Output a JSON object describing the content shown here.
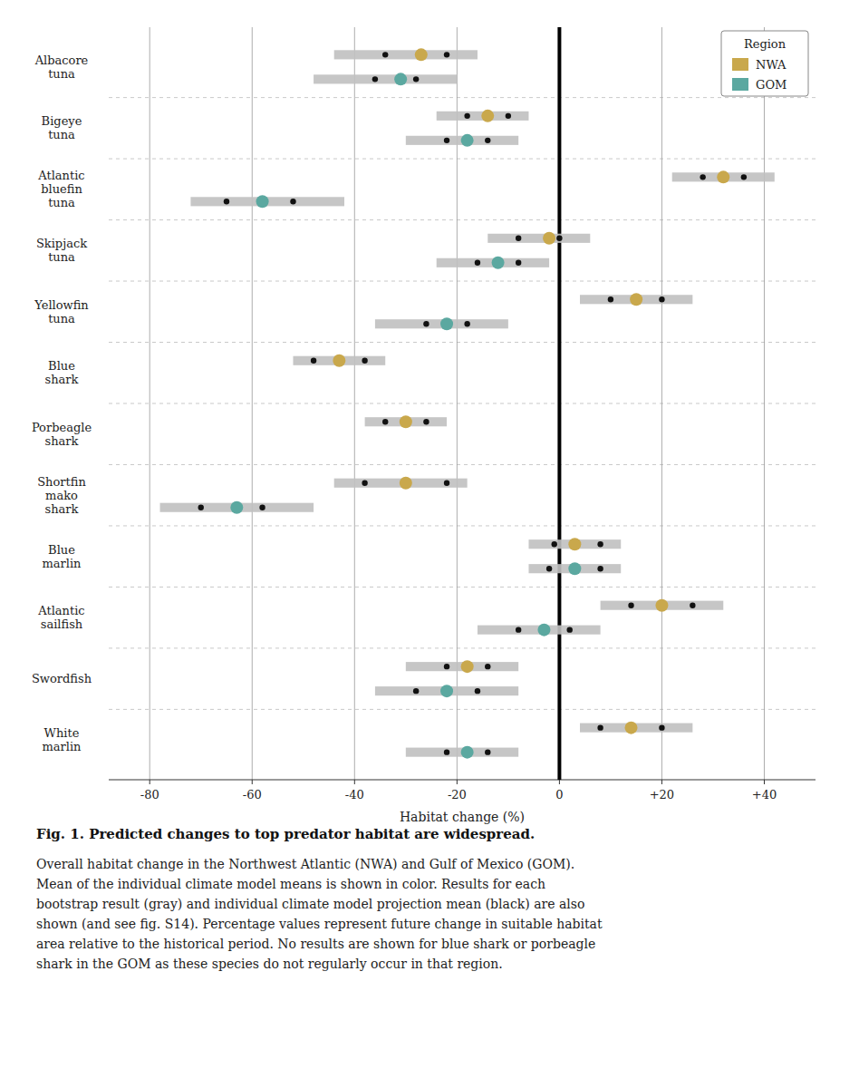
{
  "chart_data": {
    "type": "dot",
    "orientation": "horizontal",
    "title": "Fig. 1. Predicted changes to top predator habitat are widespread.",
    "caption": [
      "Overall habitat change in the Northwest Atlantic (NWA) and Gulf of Mexico (GOM).",
      "Mean of the individual climate model means is shown in color. Results for each",
      "bootstrap result (gray) and individual climate model projection mean (black) are also",
      "shown (and see fig. S14). Percentage values represent future change in suitable habitat",
      "area relative to the historical period. No results are shown for blue shark or porbeagle",
      "shark in the GOM as these species do not regularly occur in that region."
    ],
    "xlabel": "Habitat change (%)",
    "legend_title": "Region",
    "legend": "upper right",
    "grid": true,
    "categories": [
      "Albacore\ntuna",
      "Bigeye\ntuna",
      "Atlantic\nbluefin\ntuna",
      "Skipjack\ntuna",
      "Yellowfin\ntuna",
      "Blue\nshark",
      "Porbeagle\nshark",
      "Shortfin\nmako\nshark",
      "Blue\nmarlin",
      "Atlantic\nsailfish",
      "Swordfish",
      "White\nmarlin"
    ],
    "xlim": [
      -88,
      50
    ],
    "xticks": [
      -80,
      -60,
      -40,
      -20,
      0,
      {
        "value": 20,
        "label": "+20"
      },
      {
        "value": 40,
        "label": "+40"
      }
    ],
    "series": [
      {
        "name": "NWA",
        "color": "#c9a84c",
        "values": [
          -27,
          -14,
          32,
          -2,
          15,
          -43,
          -30,
          -30,
          3,
          20,
          -18,
          14
        ],
        "model_means": [
          [
            -34,
            -22
          ],
          [
            -18,
            -10
          ],
          [
            28,
            36
          ],
          [
            -8,
            0
          ],
          [
            10,
            20
          ],
          [
            -48,
            -38
          ],
          [
            -34,
            -26
          ],
          [
            -38,
            -22
          ],
          [
            -1,
            8
          ],
          [
            14,
            26
          ],
          [
            -22,
            -14
          ],
          [
            8,
            20
          ]
        ],
        "bootstrap_ranges": [
          [
            -44,
            -16
          ],
          [
            -24,
            -6
          ],
          [
            22,
            42
          ],
          [
            -14,
            6
          ],
          [
            4,
            26
          ],
          [
            -52,
            -34
          ],
          [
            -38,
            -22
          ],
          [
            -44,
            -18
          ],
          [
            -6,
            12
          ],
          [
            8,
            32
          ],
          [
            -30,
            -8
          ],
          [
            4,
            26
          ]
        ]
      },
      {
        "name": "GOM",
        "color": "#5ba8a0",
        "values": [
          -31,
          -18,
          -58,
          -12,
          -22,
          null,
          null,
          -63,
          3,
          -3,
          -22,
          -18
        ],
        "model_means": [
          [
            -36,
            -28
          ],
          [
            -22,
            -14
          ],
          [
            -65,
            -52
          ],
          [
            -16,
            -8
          ],
          [
            -26,
            -18
          ],
          null,
          null,
          [
            -70,
            -58
          ],
          [
            -2,
            8
          ],
          [
            -8,
            2
          ],
          [
            -28,
            -16
          ],
          [
            -22,
            -14
          ]
        ],
        "bootstrap_ranges": [
          [
            -48,
            -20
          ],
          [
            -30,
            -8
          ],
          [
            -72,
            -42
          ],
          [
            -24,
            -2
          ],
          [
            -36,
            -10
          ],
          null,
          null,
          [
            -78,
            -48
          ],
          [
            -6,
            12
          ],
          [
            -16,
            8
          ],
          [
            -36,
            -8
          ],
          [
            -30,
            -8
          ]
        ]
      }
    ]
  }
}
